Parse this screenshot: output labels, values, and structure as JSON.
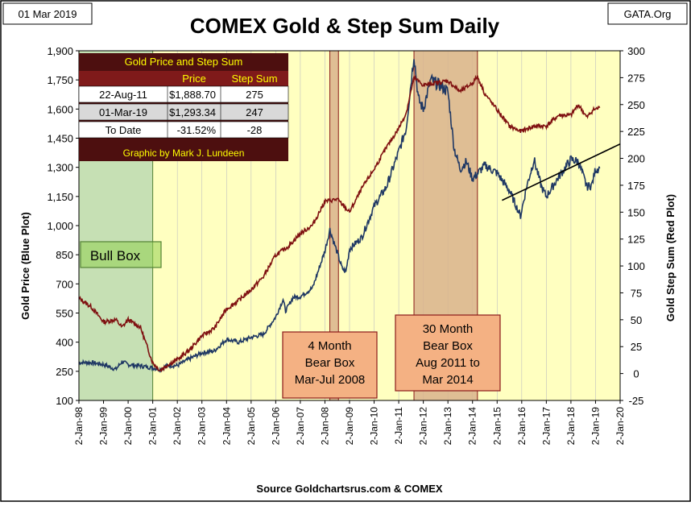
{
  "header": {
    "date": "01 Mar 2019",
    "title": "COMEX Gold & Step Sum Daily",
    "source": "GATA.Org"
  },
  "footer": {
    "source": "Source Goldchartsrus.com & COMEX"
  },
  "axes": {
    "y_left_label": "Gold Price  (Blue Plot)",
    "y_right_label": "Gold Step Sum  (Red Plot)",
    "y_left_ticks": [
      "1,900",
      "1,750",
      "1,600",
      "1,450",
      "1,300",
      "1,150",
      "1,000",
      "850",
      "700",
      "550",
      "400",
      "250",
      "100"
    ],
    "y_right_ticks": [
      "300",
      "275",
      "250",
      "225",
      "200",
      "175",
      "150",
      "125",
      "100",
      "75",
      "50",
      "25",
      "0",
      "-25"
    ],
    "x_ticks": [
      "2-Jan-98",
      "2-Jan-99",
      "2-Jan-00",
      "2-Jan-01",
      "2-Jan-02",
      "2-Jan-03",
      "2-Jan-04",
      "2-Jan-05",
      "2-Jan-06",
      "2-Jan-07",
      "2-Jan-08",
      "2-Jan-09",
      "2-Jan-10",
      "2-Jan-11",
      "2-Jan-12",
      "2-Jan-13",
      "2-Jan-14",
      "2-Jan-15",
      "2-Jan-16",
      "2-Jan-17",
      "2-Jan-18",
      "2-Jan-19",
      "2-Jan-20"
    ]
  },
  "info_table": {
    "title": "Gold Price and Step Sum",
    "headers": [
      "",
      "Price",
      "Step Sum"
    ],
    "rows": [
      [
        "22-Aug-11",
        "$1,888.70",
        "275"
      ],
      [
        "01-Mar-19",
        "$1,293.34",
        "247"
      ],
      [
        "To Date",
        "-31.52%",
        "-28"
      ]
    ],
    "credit": "Graphic by Mark J. Lundeen"
  },
  "boxes": {
    "bull": {
      "label": "Bull Box",
      "from": 1998.0,
      "to": 2001.0
    },
    "bear1": {
      "label_lines": [
        "4 Month",
        "Bear Box",
        "Mar-Jul 2008"
      ],
      "from": 2008.2,
      "to": 2008.55
    },
    "bear2": {
      "label_lines": [
        "30 Month",
        "Bear Box",
        "Aug 2011 to",
        "Mar 2014"
      ],
      "from": 2011.62,
      "to": 2014.2
    }
  },
  "colors": {
    "plot_bg": "#ffffc0",
    "gold_line": "#1f3864",
    "stepsum_line": "#7f1010",
    "bull_fill": "#c6e0b4",
    "bear_fill": "#d9b38c",
    "label_box_fill": "#f4b183",
    "table_dark": "#4d0f0f",
    "table_title_text": "#ffff00"
  },
  "chart_data": {
    "type": "line",
    "x_range": [
      1998,
      2020
    ],
    "ylim_left": [
      100,
      1900
    ],
    "ylim_right": [
      -25,
      300
    ],
    "series": [
      {
        "axis": "left",
        "x": [
          1998.0,
          1998.5,
          1999.0,
          1999.5,
          1999.75,
          2000.0,
          2000.5,
          2001.0,
          2001.3,
          2001.6,
          2002.0,
          2002.5,
          2003.0,
          2003.5,
          2004.0,
          2004.5,
          2005.0,
          2005.5,
          2006.0,
          2006.3,
          2006.4,
          2006.7,
          2007.0,
          2007.5,
          2008.0,
          2008.2,
          2008.7,
          2008.85,
          2009.0,
          2009.5,
          2010.0,
          2010.5,
          2011.0,
          2011.3,
          2011.62,
          2011.8,
          2012.0,
          2012.3,
          2012.7,
          2013.0,
          2013.25,
          2013.5,
          2013.75,
          2014.0,
          2014.5,
          2015.0,
          2015.5,
          2015.95,
          2016.2,
          2016.5,
          2016.8,
          2017.0,
          2017.5,
          2018.0,
          2018.3,
          2018.65,
          2018.85,
          2019.0,
          2019.17
        ],
        "values": [
          295,
          295,
          285,
          260,
          300,
          285,
          278,
          268,
          260,
          280,
          280,
          315,
          345,
          355,
          415,
          400,
          425,
          440,
          530,
          620,
          560,
          630,
          635,
          680,
          870,
          980,
          780,
          760,
          880,
          940,
          1100,
          1200,
          1380,
          1500,
          1880,
          1650,
          1600,
          1750,
          1720,
          1690,
          1400,
          1290,
          1330,
          1240,
          1310,
          1270,
          1180,
          1050,
          1200,
          1340,
          1200,
          1150,
          1250,
          1340,
          1330,
          1200,
          1210,
          1290,
          1295
        ]
      },
      {
        "axis": "right",
        "x": [
          1998.0,
          1998.5,
          1999.0,
          1999.5,
          1999.75,
          2000.0,
          2000.5,
          2001.0,
          2001.3,
          2001.6,
          2002.0,
          2002.5,
          2003.0,
          2003.5,
          2004.0,
          2004.5,
          2005.0,
          2005.5,
          2006.0,
          2006.5,
          2007.0,
          2007.5,
          2008.0,
          2008.5,
          2009.0,
          2009.5,
          2010.0,
          2010.5,
          2011.0,
          2011.3,
          2011.62,
          2012.0,
          2012.5,
          2013.0,
          2013.5,
          2014.0,
          2014.2,
          2014.5,
          2015.0,
          2015.5,
          2015.95,
          2016.5,
          2017.0,
          2017.5,
          2018.0,
          2018.3,
          2018.65,
          2018.9,
          2019.17
        ],
        "values": [
          70,
          62,
          48,
          50,
          43,
          50,
          43,
          10,
          3,
          8,
          13,
          22,
          35,
          42,
          60,
          68,
          78,
          90,
          110,
          118,
          130,
          138,
          160,
          162,
          150,
          172,
          190,
          210,
          228,
          242,
          275,
          268,
          270,
          272,
          262,
          270,
          276,
          260,
          245,
          230,
          225,
          230,
          230,
          240,
          240,
          250,
          238,
          245,
          247
        ]
      }
    ],
    "trendline": {
      "x": [
        2015.2,
        2020.0
      ],
      "values_left": [
        1130,
        1420
      ]
    }
  }
}
